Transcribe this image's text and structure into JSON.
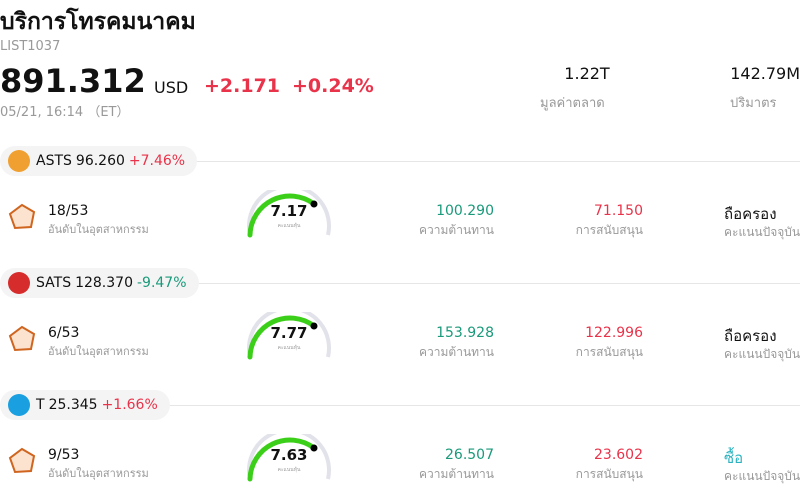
{
  "header": {
    "title": "บริการโทรคมนาคม",
    "code": "LIST1037",
    "price": "891.312",
    "currency": "USD",
    "change": "+2.171",
    "change_pct": "+0.24%",
    "time": "05/21, 16:14 （ET）",
    "stats": [
      {
        "value": "1.22T",
        "label": "มูลค่าตลาด"
      },
      {
        "value": "142.79M",
        "label": "ปริมาตร"
      }
    ]
  },
  "stocks": [
    {
      "ticker": "ASTS",
      "price": "96.260",
      "change": "+7.46%",
      "rank": "18/53",
      "rank_label": "อันดับในอุตสาหกรรม",
      "score": "7.17",
      "score_label": "คะแนนหุ้น",
      "resistance": "100.290",
      "resistance_label": "ความต้านทาน",
      "support": "71.150",
      "support_label": "การสนับสนุน",
      "rating": "ถือครอง",
      "rating_label": "คะแนนปัจจุบัน",
      "rating_color": "#111111"
    },
    {
      "ticker": "SATS",
      "price": "128.370",
      "change": "-9.47%",
      "rank": "6/53",
      "rank_label": "อันดับในอุตสาหกรรม",
      "score": "7.77",
      "score_label": "คะแนนหุ้น",
      "resistance": "153.928",
      "resistance_label": "ความต้านทาน",
      "support": "122.996",
      "support_label": "การสนับสนุน",
      "rating": "ถือครอง",
      "rating_label": "คะแนนปัจจุบัน",
      "rating_color": "#111111"
    },
    {
      "ticker": "T",
      "price": "25.345",
      "change": "+1.66%",
      "rank": "9/53",
      "rank_label": "อันดับในอุตสาหกรรม",
      "score": "7.63",
      "score_label": "คะแนนหุ้น",
      "resistance": "26.507",
      "resistance_label": "ความต้านทาน",
      "support": "23.602",
      "support_label": "การสนับสนุน",
      "rating": "ซื้อ",
      "rating_label": "คะแนนปัจจุบัน",
      "rating_color": "#2bb3c0"
    }
  ]
}
